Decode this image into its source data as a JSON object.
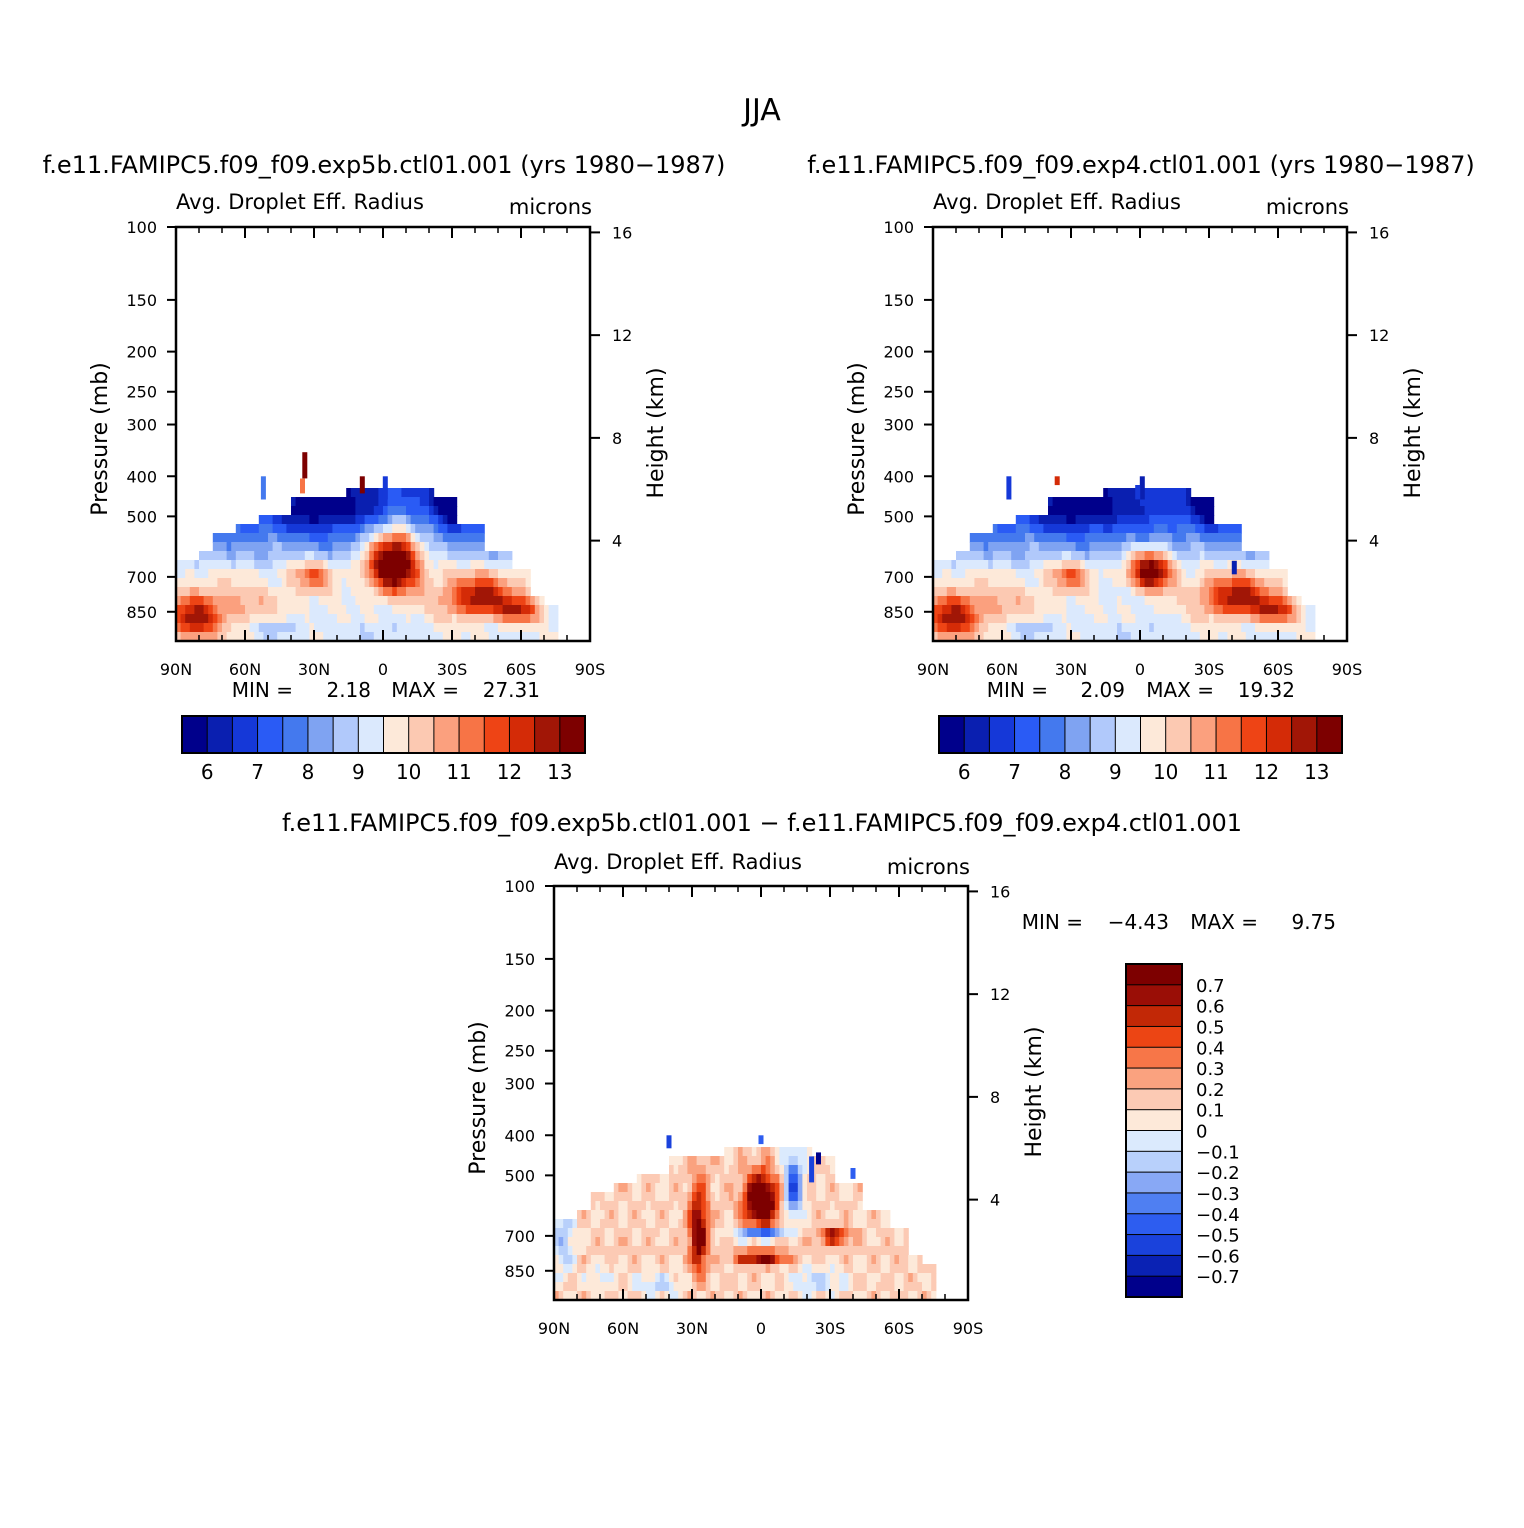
{
  "figure": {
    "title": "JJA",
    "panels": [
      {
        "id": "exp5b",
        "case": "f.e11.FAMIPC5.f09_f09.exp5b.ctl01.001 (yrs 1980−1987)",
        "variable": "Avg. Droplet Eff. Radius",
        "units": "microns",
        "min_label": "MIN =",
        "min_value": "2.18",
        "max_label": "MAX =",
        "max_value": "27.31"
      },
      {
        "id": "exp4",
        "case": "f.e11.FAMIPC5.f09_f09.exp4.ctl01.001 (yrs 1980−1987)",
        "variable": "Avg. Droplet Eff. Radius",
        "units": "microns",
        "min_label": "MIN =",
        "min_value": "2.09",
        "max_label": "MAX =",
        "max_value": "19.32"
      },
      {
        "id": "diff",
        "case": "f.e11.FAMIPC5.f09_f09.exp5b.ctl01.001 − f.e11.FAMIPC5.f09_f09.exp4.ctl01.001",
        "variable": "Avg. Droplet Eff. Radius",
        "units": "microns",
        "min_label": "MIN =",
        "min_value": "−4.43",
        "max_label": "MAX =",
        "max_value": "9.75"
      }
    ]
  },
  "chart_data": [
    {
      "type": "heatmap",
      "panel": "exp5b",
      "xlabel": "",
      "ylabel": "Pressure (mb)",
      "ylabel_right": "Height (km)",
      "x_ticks": [
        "90N",
        "60N",
        "30N",
        "0",
        "30S",
        "60S",
        "90S"
      ],
      "x_range": [
        90,
        -90
      ],
      "y_ticks": [
        "100",
        "150",
        "200",
        "250",
        "300",
        "400",
        "500",
        "700",
        "850"
      ],
      "y_range": [
        100,
        1000
      ],
      "y_scale": "log",
      "y_right_ticks": [
        "16",
        "12",
        "8",
        "4"
      ],
      "colorbar_labels": [
        "6",
        "7",
        "8",
        "9",
        "10",
        "11",
        "12",
        "13"
      ],
      "colorbar_orientation": "horizontal",
      "features": [
        {
          "lat": -5,
          "p": 640,
          "value": 15,
          "note": "maximum core"
        },
        {
          "lat": 30,
          "p": 700,
          "value": 11.5
        },
        {
          "lat": -40,
          "p": 780,
          "value": 12.5
        },
        {
          "lat": 80,
          "p": 880,
          "value": 12.5
        },
        {
          "lat": 20,
          "p": 500,
          "value": 7
        },
        {
          "lat": -30,
          "p": 480,
          "value": 6.5
        }
      ]
    },
    {
      "type": "heatmap",
      "panel": "exp4",
      "xlabel": "",
      "ylabel": "Pressure (mb)",
      "ylabel_right": "Height (km)",
      "x_ticks": [
        "90N",
        "60N",
        "30N",
        "0",
        "30S",
        "60S",
        "90S"
      ],
      "x_range": [
        90,
        -90
      ],
      "y_ticks": [
        "100",
        "150",
        "200",
        "250",
        "300",
        "400",
        "500",
        "700",
        "850"
      ],
      "y_range": [
        100,
        1000
      ],
      "y_scale": "log",
      "y_right_ticks": [
        "16",
        "12",
        "8",
        "4"
      ],
      "colorbar_labels": [
        "6",
        "7",
        "8",
        "9",
        "10",
        "11",
        "12",
        "13"
      ],
      "colorbar_orientation": "horizontal",
      "features": [
        {
          "lat": -5,
          "p": 680,
          "value": 13.5,
          "note": "maximum core"
        },
        {
          "lat": 30,
          "p": 700,
          "value": 11
        },
        {
          "lat": -45,
          "p": 790,
          "value": 12.5
        },
        {
          "lat": 80,
          "p": 880,
          "value": 12.5
        },
        {
          "lat": 20,
          "p": 500,
          "value": 7
        },
        {
          "lat": -30,
          "p": 480,
          "value": 6.5
        }
      ]
    },
    {
      "type": "heatmap",
      "panel": "diff",
      "xlabel": "",
      "ylabel": "Pressure (mb)",
      "ylabel_right": "Height (km)",
      "x_ticks": [
        "90N",
        "60N",
        "30N",
        "0",
        "30S",
        "60S",
        "90S"
      ],
      "x_range": [
        90,
        -90
      ],
      "y_ticks": [
        "100",
        "150",
        "200",
        "250",
        "300",
        "400",
        "500",
        "700",
        "850"
      ],
      "y_range": [
        100,
        1000
      ],
      "y_scale": "log",
      "y_right_ticks": [
        "16",
        "12",
        "8",
        "4"
      ],
      "colorbar_labels": [
        "0.7",
        "0.6",
        "0.5",
        "0.4",
        "0.3",
        "0.2",
        "0.1",
        "0",
        "−0.1",
        "−0.2",
        "−0.3",
        "−0.4",
        "−0.5",
        "−0.6",
        "−0.7"
      ],
      "colorbar_orientation": "vertical",
      "features": [
        {
          "lat": 0,
          "p": 580,
          "value": 0.8,
          "note": "positive core"
        },
        {
          "lat": 0,
          "p": 700,
          "value": -0.8,
          "note": "negative band"
        },
        {
          "lat": 28,
          "p": 700,
          "value": 0.6
        },
        {
          "lat": -32,
          "p": 700,
          "value": 0.6
        },
        {
          "lat": -15,
          "p": 500,
          "value": -0.5
        }
      ]
    }
  ],
  "colors": {
    "seq": [
      "#00008b",
      "#0a1fb0",
      "#1538d8",
      "#2a5bf5",
      "#4479ee",
      "#7fa3f2",
      "#b1c9fb",
      "#dbe9fd",
      "#fde9d9",
      "#fcc9b2",
      "#fba07e",
      "#f77446",
      "#ee4415",
      "#d42b07",
      "#a11606",
      "#7d0000"
    ],
    "diff": [
      "#00008b",
      "#0a22b4",
      "#1a42dc",
      "#2d5df0",
      "#4f7ff2",
      "#88a8f5",
      "#b8d0fb",
      "#dbeafd",
      "#fde9d9",
      "#fccab4",
      "#faa27f",
      "#f77648",
      "#ec4514",
      "#c22806",
      "#9a0e06",
      "#7d0000"
    ]
  }
}
